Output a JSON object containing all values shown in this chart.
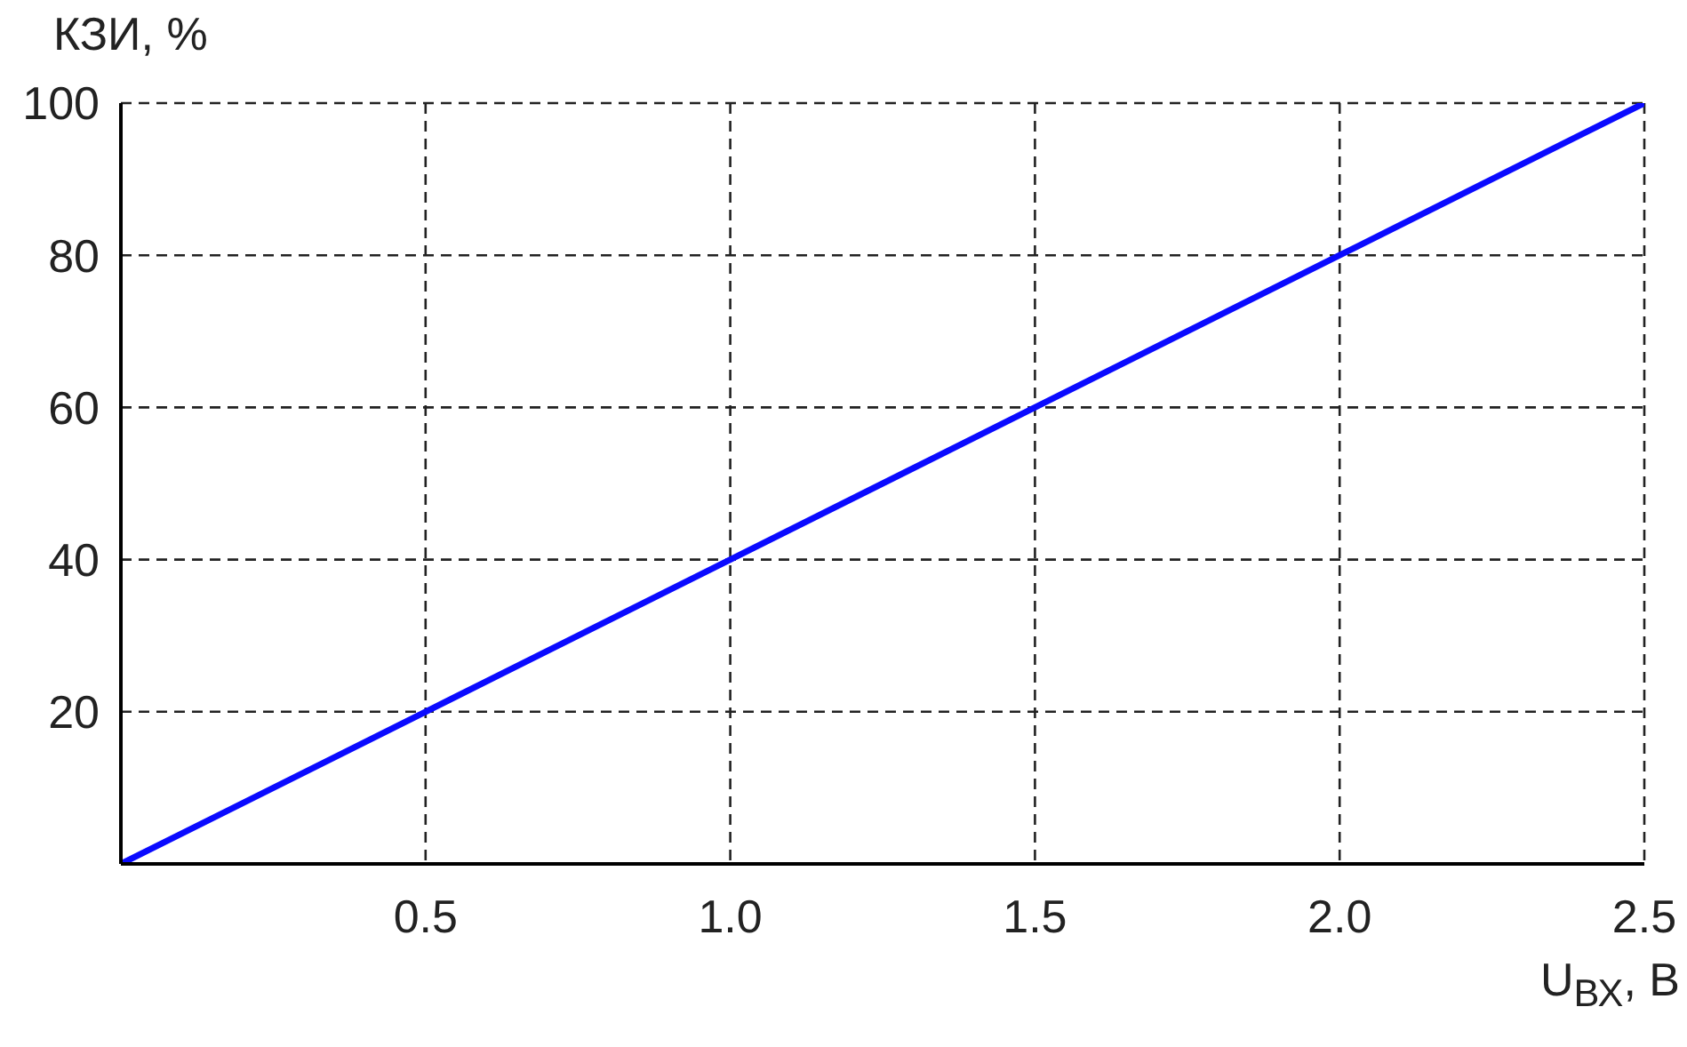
{
  "chart_data": {
    "type": "line",
    "xlabel": "U$_{ВХ}$, В",
    "ylabel": "КЗИ, %",
    "x": [
      0,
      0.5,
      1,
      1.5,
      2,
      2.5
    ],
    "series": [
      {
        "color": "#0a0aff",
        "values": [
          0,
          20,
          40,
          60,
          80,
          100
        ]
      }
    ],
    "xlim": [
      0,
      2.5
    ],
    "ylim": [
      0,
      100
    ],
    "xticks": [
      0.5,
      {
        "value": 1,
        "label": "1.0"
      },
      1.5,
      {
        "value": 2,
        "label": "2.0"
      },
      2.5
    ],
    "yticks": [
      20,
      40,
      60,
      80,
      100
    ],
    "grid": true,
    "marker": "none",
    "line_style": "solid"
  }
}
